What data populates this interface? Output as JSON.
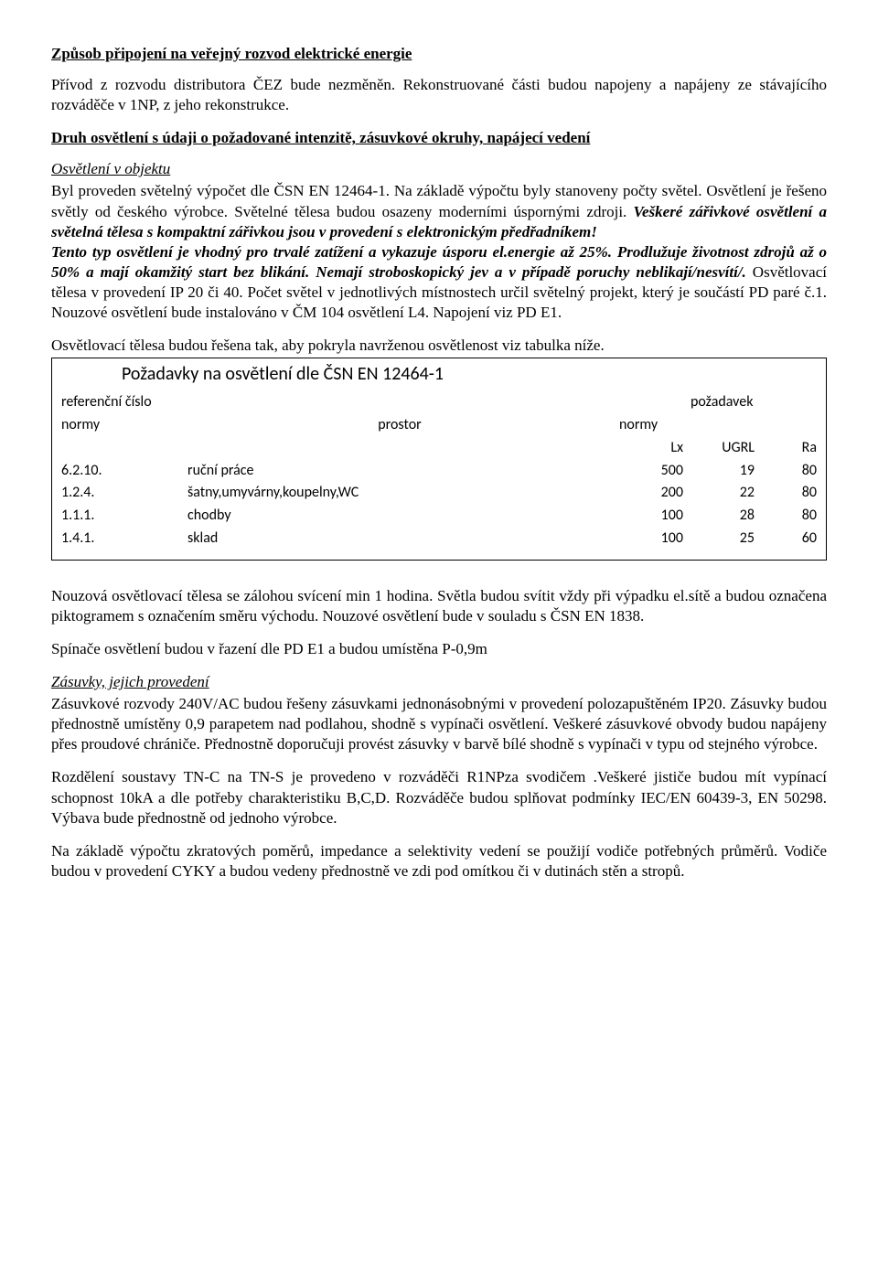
{
  "h1": "Způsob připojení na veřejný rozvod elektrické energie",
  "p1": "Přívod z rozvodu distributora ČEZ bude nezměněn. Rekonstruované části budou napojeny a napájeny ze stávajícího rozváděče v 1NP, z jeho rekonstrukce.",
  "h2": "Druh osvětlení s údaji o požadované intenzitě, zásuvkové okruhy, napájecí vedení",
  "sub1": "Osvětlení v objektu",
  "p2a": "Byl proveden světelný výpočet dle ČSN EN 12464-1. Na základě výpočtu byly stanoveny počty světel. Osvětlení je řešeno světly od českého výrobce. Světelné tělesa budou osazeny moderními úspornými zdroji. ",
  "p2b": "Veškeré zářivkové osvětlení a světelná tělesa s kompaktní zářivkou jsou v provedení s elektronickým předřadníkem!",
  "p2c": "Tento typ osvětlení je vhodný pro trvalé zatížení a vykazuje úsporu el.energie až 25%. Prodlužuje životnost zdrojů až o 50% a mají okamžitý start bez blikání. Nemají stroboskopický jev a v případě poruchy neblikají/nesvítí/. ",
  "p2d": "Osvětlovací tělesa  v provedení IP 20 či 40. Počet světel v jednotlivých místnostech určil světelný projekt, který je součástí PD paré č.1. Nouzové osvětlení bude instalováno v ČM 104 osvětlení L4. Napojení viz PD E1.",
  "p3": "Osvětlovací tělesa budou řešena tak, aby pokryla navrženou osvětlenost viz tabulka níže.",
  "table": {
    "title": "Požadavky na osvětlení dle ČSN EN 12464-1",
    "header": {
      "ref1": "referenční číslo",
      "ref2": "normy",
      "prostor": "prostor",
      "poz1": "požadavek",
      "poz2": "normy",
      "lx": "Lx",
      "ugrl": "UGRL",
      "ra": "Ra"
    },
    "rows": [
      {
        "ref": "6.2.10.",
        "prostor": "ruční práce",
        "lx": "500",
        "ugrl": "19",
        "ra": "80"
      },
      {
        "ref": "1.2.4.",
        "prostor": "šatny,umyvárny,koupelny,WC",
        "lx": "200",
        "ugrl": "22",
        "ra": "80"
      },
      {
        "ref": "1.1.1.",
        "prostor": "chodby",
        "lx": "100",
        "ugrl": "28",
        "ra": "80"
      },
      {
        "ref": "1.4.1.",
        "prostor": "sklad",
        "lx": "100",
        "ugrl": "25",
        "ra": "60"
      }
    ]
  },
  "p4": "Nouzová osvětlovací tělesa se zálohou svícení min 1 hodina. Světla budou svítit vždy při výpadku el.sítě a budou označena piktogramem s označením směru východu. Nouzové osvětlení bude v souladu s ČSN EN 1838.",
  "p5": "Spínače osvětlení budou v řazení dle PD E1 a budou umístěna P-0,9m",
  "sub2": "Zásuvky, jejich provedení",
  "p6": "Zásuvkové rozvody 240V/AC budou řešeny zásuvkami jednonásobnými v provedení polozapuštěném IP20. Zásuvky budou přednostně umístěny 0,9 parapetem nad podlahou, shodně s vypínači osvětlení. Veškeré zásuvkové obvody budou napájeny přes proudové chrániče. Přednostně doporučuji provést zásuvky v barvě bílé shodně s vypínači v typu  od stejného výrobce.",
  "p7": "Rozdělení soustavy TN-C na TN-S je provedeno v rozváděči R1NPza svodičem .Veškeré jističe budou mít vypínací schopnost 10kA a dle potřeby charakteristiku B,C,D. Rozváděče budou splňovat podmínky IEC/EN 60439-3, EN 50298. Výbava bude přednostně od jednoho výrobce.",
  "p8": "Na základě výpočtu zkratových poměrů, impedance a selektivity vedení se použijí vodiče potřebných průměrů. Vodiče budou v provedení CYKY a budou vedeny přednostně ve zdi pod omítkou či v dutinách stěn a stropů."
}
